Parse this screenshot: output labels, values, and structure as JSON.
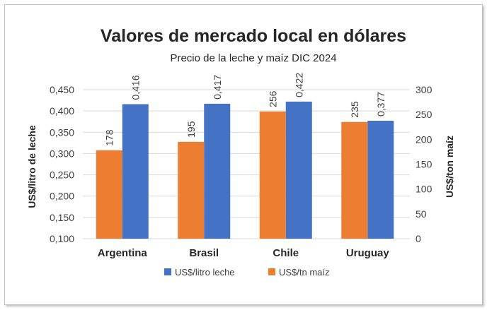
{
  "chart_data": {
    "type": "bar",
    "title": "Valores de mercado local en dólares",
    "subtitle": "Precio de la leche y maíz DIC 2024",
    "categories": [
      "Argentina",
      "Brasil",
      "Chile",
      "Uruguay"
    ],
    "y_left": {
      "label": "US$/litro de leche",
      "range": [
        0.1,
        0.45
      ],
      "ticks": [
        "0,100",
        "0,150",
        "0,200",
        "0,250",
        "0,300",
        "0,350",
        "0,400",
        "0,450"
      ]
    },
    "y_right": {
      "label": "US$/ton maíz",
      "range": [
        0,
        300
      ],
      "ticks": [
        "0",
        "50",
        "100",
        "150",
        "200",
        "250",
        "300"
      ]
    },
    "series": [
      {
        "name": "US$/litro leche",
        "axis": "left",
        "color": "#4472C4",
        "values": [
          0.416,
          0.417,
          0.422,
          0.377
        ],
        "labels": [
          "0,416",
          "0,417",
          "0,422",
          "0,377"
        ]
      },
      {
        "name": "US$/tn maíz",
        "axis": "right",
        "color": "#ED7D31",
        "values": [
          178,
          195,
          256,
          235
        ],
        "labels": [
          "178",
          "195",
          "256",
          "235"
        ]
      }
    ],
    "grid": true,
    "legend_position": "bottom"
  }
}
